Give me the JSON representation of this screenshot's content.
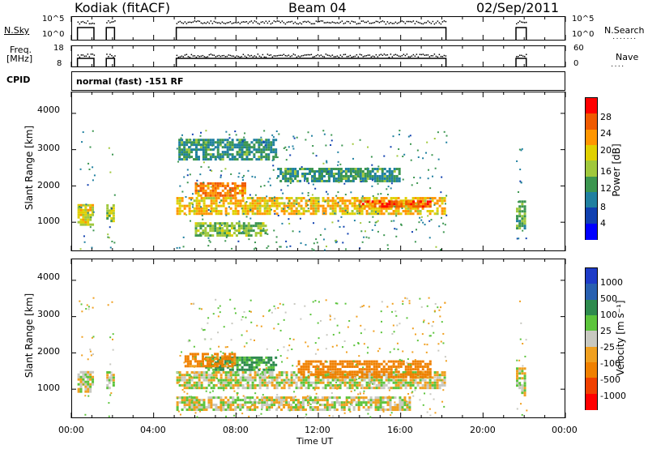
{
  "header": {
    "radar": "Kodiak (fitACF)",
    "beam": "Beam 04",
    "date": "02/Sep/2011"
  },
  "strip1": {
    "left_label": "N.Sky",
    "ticks_left": [
      "10^5",
      "10^0"
    ],
    "ticks_right": [
      "10^5",
      "10^0"
    ],
    "right_label": "N.Search"
  },
  "strip2": {
    "left_label_1": "Freq.",
    "left_label_2": "[MHz]",
    "ticks_left": [
      "18",
      "8"
    ],
    "ticks_right": [
      "60",
      "0"
    ],
    "right_label": "Nave"
  },
  "cpid": {
    "label": "CPID",
    "value": "normal (fast) -151 RF"
  },
  "panels": [
    {
      "ylabel": "Slant Range [km]",
      "yticks": [
        "4000",
        "3000",
        "2000",
        "1000"
      ]
    },
    {
      "ylabel": "Slant Range [km]",
      "yticks": [
        "4000",
        "3000",
        "2000",
        "1000"
      ]
    }
  ],
  "power_colorbar": {
    "label": "Power [dB]",
    "ticks": [
      "28",
      "24",
      "20",
      "16",
      "12",
      "8",
      "4"
    ],
    "colors": [
      "#ff0000",
      "#f05a00",
      "#ff9600",
      "#e0d000",
      "#a0c83c",
      "#3c9650",
      "#2080a0",
      "#1040b0",
      "#0000ff"
    ]
  },
  "velocity_colorbar": {
    "label": "Velocity [m s⁻¹]",
    "ticks": [
      "1000",
      "500",
      "100",
      "25",
      "-25",
      "-100",
      "-500",
      "-1000"
    ],
    "colors": [
      "#1e3cc8",
      "#2860b0",
      "#2e8a4e",
      "#5cc43c",
      "#c8c8c0",
      "#f0a020",
      "#f08000",
      "#f04000",
      "#ff0000"
    ]
  },
  "xaxis": {
    "label": "Time UT",
    "ticks": [
      "00:00",
      "04:00",
      "08:00",
      "12:00",
      "16:00",
      "20:00",
      "00:00"
    ]
  },
  "chart_data": {
    "type": "heatmap",
    "title": "Kodiak (fitACF) Beam 04 02/Sep/2011",
    "xlabel": "Time UT",
    "ylabel": "Slant Range [km]",
    "xlim_hours": [
      0,
      24
    ],
    "ylim_km": [
      200,
      4600
    ],
    "data_intervals_hours": [
      [
        0.3,
        1.1
      ],
      [
        1.7,
        2.1
      ],
      [
        5.1,
        18.2
      ],
      [
        21.6,
        22.1
      ]
    ],
    "power_features": [
      {
        "t0": 0.3,
        "t1": 1.1,
        "r0": 900,
        "r1": 1500,
        "db": 18
      },
      {
        "t0": 1.7,
        "t1": 2.1,
        "r0": 1000,
        "r1": 1500,
        "db": 16
      },
      {
        "t0": 5.1,
        "t1": 18.2,
        "r0": 1200,
        "r1": 1700,
        "db": 20
      },
      {
        "t0": 6.0,
        "t1": 8.5,
        "r0": 1700,
        "r1": 2100,
        "db": 24
      },
      {
        "t0": 6.0,
        "t1": 9.5,
        "r0": 600,
        "r1": 1000,
        "db": 14
      },
      {
        "t0": 10.0,
        "t1": 16.0,
        "r0": 2100,
        "r1": 2500,
        "db": 10
      },
      {
        "t0": 5.2,
        "t1": 10.0,
        "r0": 2700,
        "r1": 3300,
        "db": 10
      },
      {
        "t0": 14.0,
        "t1": 17.5,
        "r0": 1400,
        "r1": 1600,
        "db": 26
      },
      {
        "t0": 21.6,
        "t1": 22.1,
        "r0": 800,
        "r1": 1600,
        "db": 12
      }
    ],
    "velocity_features": [
      {
        "t0": 0.3,
        "t1": 1.1,
        "r0": 900,
        "r1": 1500,
        "v": 0
      },
      {
        "t0": 1.7,
        "t1": 2.1,
        "r0": 1000,
        "r1": 1500,
        "v": 0
      },
      {
        "t0": 5.1,
        "t1": 18.2,
        "r0": 1000,
        "r1": 1500,
        "v": 0
      },
      {
        "t0": 6.5,
        "t1": 10.0,
        "r0": 1500,
        "r1": 1900,
        "v": 120
      },
      {
        "t0": 5.5,
        "t1": 8.0,
        "r0": 1600,
        "r1": 2000,
        "v": -150
      },
      {
        "t0": 11.0,
        "t1": 17.5,
        "r0": 1300,
        "r1": 1800,
        "v": -200
      },
      {
        "t0": 5.1,
        "t1": 16.5,
        "r0": 400,
        "r1": 800,
        "v": 0
      },
      {
        "t0": 21.6,
        "t1": 22.1,
        "r0": 800,
        "r1": 1600,
        "v": 0
      }
    ]
  }
}
